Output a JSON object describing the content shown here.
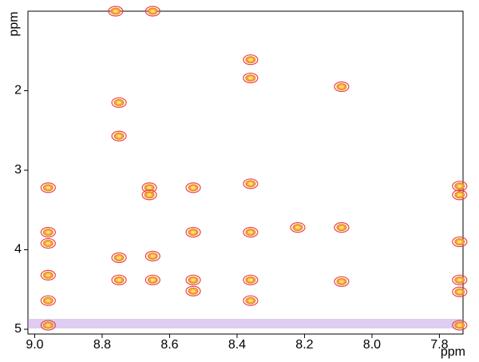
{
  "chart_data": {
    "type": "scatter",
    "x_label": "ppm",
    "y_label": "ppm",
    "x": [
      8.76,
      8.65,
      8.36,
      8.36,
      8.09,
      8.75,
      8.75,
      8.96,
      8.66,
      8.53,
      7.74,
      8.66,
      7.74,
      8.36,
      8.09,
      8.22,
      8.96,
      8.96,
      8.53,
      8.36,
      7.74,
      8.75,
      8.65,
      8.96,
      8.75,
      8.65,
      8.53,
      8.36,
      8.09,
      7.74,
      8.53,
      8.96,
      8.36,
      7.74,
      8.96,
      7.74
    ],
    "values": [
      1.0,
      1.0,
      1.61,
      1.84,
      1.95,
      2.15,
      2.57,
      3.22,
      3.22,
      3.22,
      3.2,
      3.31,
      3.31,
      3.17,
      3.72,
      3.72,
      3.78,
      3.92,
      3.78,
      3.78,
      3.9,
      4.1,
      4.08,
      4.32,
      4.38,
      4.38,
      4.38,
      4.38,
      4.4,
      4.38,
      4.52,
      4.64,
      4.64,
      4.53,
      4.95,
      4.95
    ],
    "color": "#e8453c",
    "xlim": [
      9.02,
      7.73
    ],
    "ylim": [
      1.0,
      5.06
    ],
    "xticks": [
      {
        "value": 9,
        "label": "9.0"
      },
      8.8,
      8.6,
      8.4,
      8.2,
      {
        "value": 8,
        "label": "8.0"
      },
      7.8
    ],
    "yticks": [
      2,
      3,
      4,
      5
    ]
  }
}
